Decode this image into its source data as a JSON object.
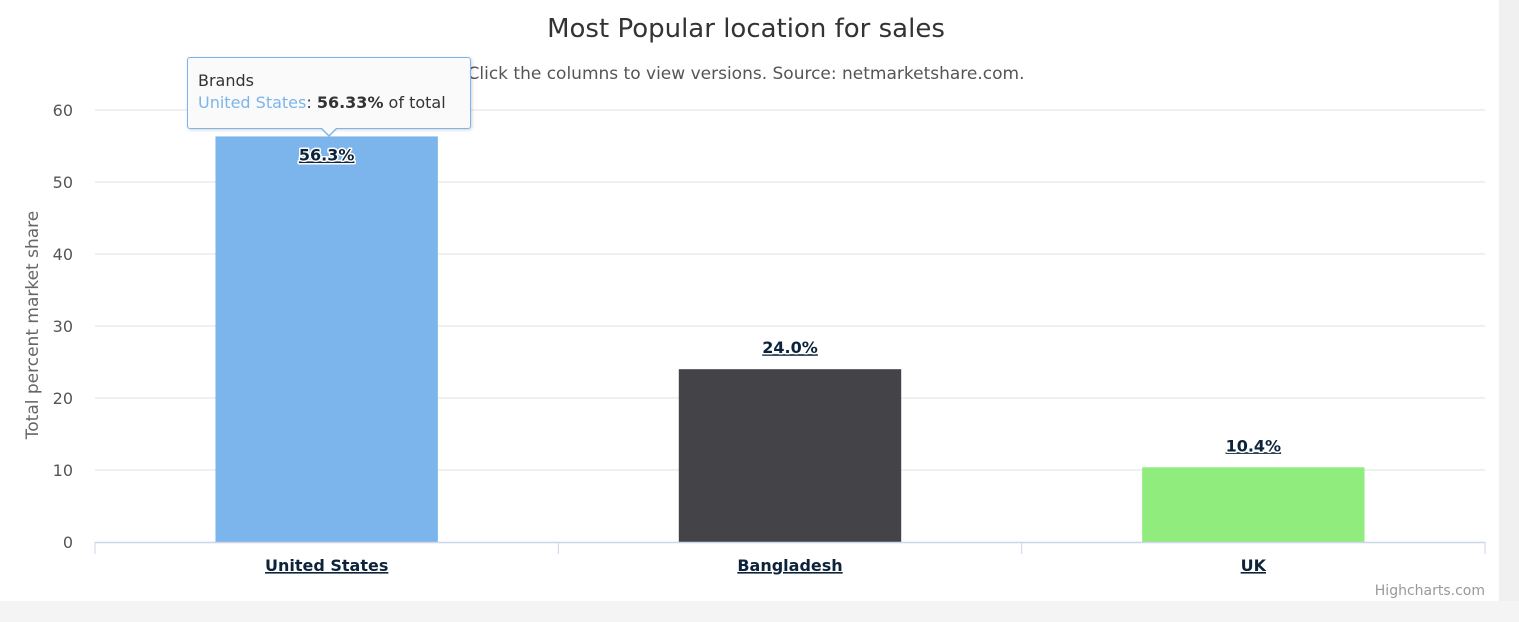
{
  "chart_data": {
    "type": "bar",
    "title": "Most Popular location for sales",
    "subtitle": "Click the columns to view versions. Source: netmarketshare.com.",
    "xlabel": "",
    "ylabel": "Total percent market share",
    "ylim": [
      0,
      60
    ],
    "yticks": [
      0,
      10,
      20,
      30,
      40,
      50,
      60
    ],
    "grid": true,
    "categories": [
      "United States",
      "Bangladesh",
      "UK"
    ],
    "values": [
      56.33,
      24.0,
      10.38
    ],
    "data_labels": [
      "56.3%",
      "24.0%",
      "10.4%"
    ],
    "colors": [
      "#7cb5ec",
      "#434348",
      "#90ed7d"
    ],
    "credits": "Highcharts.com"
  },
  "tooltip": {
    "header": "Brands",
    "series_name": "United States",
    "value": "56.33%",
    "suffix": " of total"
  }
}
